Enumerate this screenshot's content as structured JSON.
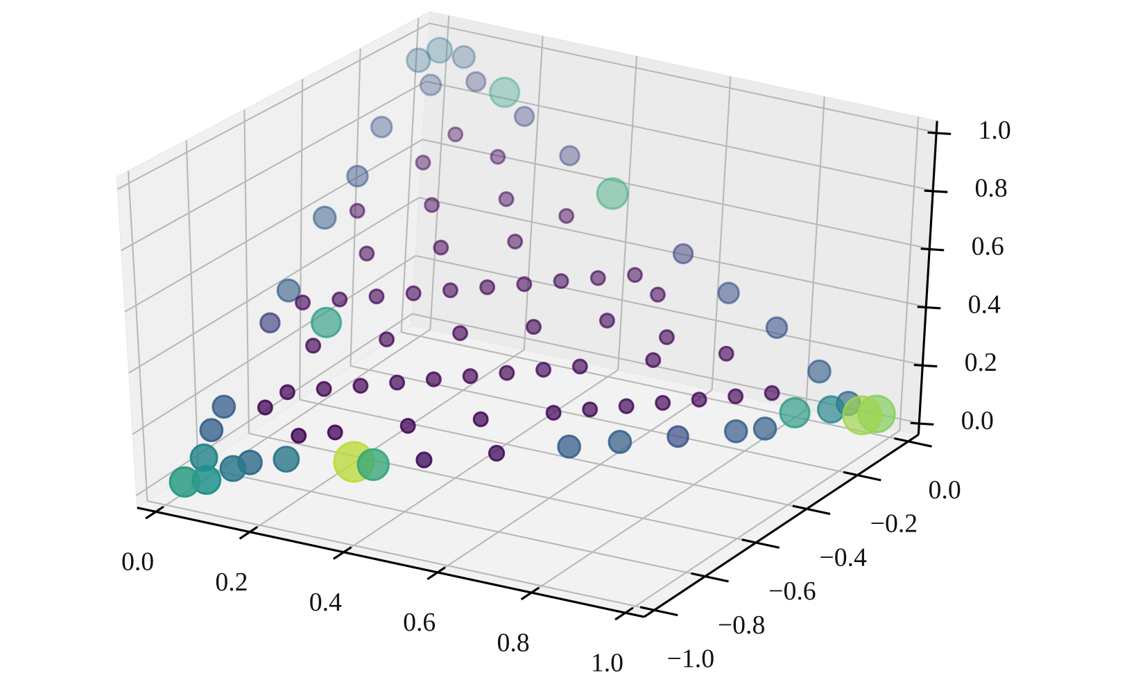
{
  "chart_data": {
    "type": "scatter3d",
    "colormap": "viridis",
    "grid": true,
    "depthshade": true,
    "x": [
      0.02,
      0.05,
      0.03,
      0.08,
      0.1,
      0.02,
      0.15,
      0.95,
      0.97,
      0.9,
      0.92,
      0.85,
      0.02,
      0,
      0.06,
      0.04,
      0.1,
      0.25,
      0.28,
      0.35,
      0.45,
      0.55,
      0.62,
      0.7,
      0.78,
      0.82,
      0.1,
      0.02,
      0.02,
      0.01,
      0.02,
      0.01,
      0.02,
      0.4,
      0.2,
      0.3,
      0.55,
      0.65,
      0.75,
      0.85,
      0.15,
      0.2,
      0.3,
      0.4,
      0.5,
      0.1,
      0.2,
      0.3,
      0.1,
      0.2,
      0.1,
      0.2,
      0.3,
      0.4,
      0.5,
      0.6,
      0.7,
      0.1,
      0.2,
      0.3,
      0.4,
      0.5,
      0.6,
      0.7,
      0.8,
      0.15,
      0.25,
      0.35,
      0.45,
      0.15,
      0.25,
      0.05,
      0.05,
      0.12,
      0.55,
      0.6,
      0.35,
      0.08,
      0.15,
      0.25,
      0.45,
      0.65,
      0.75,
      0.4,
      0.3,
      0.2,
      0.1,
      0.15,
      0.35,
      0.55,
      0.5
    ],
    "y": [
      -0.96,
      -0.93,
      -0.9,
      -0.88,
      -0.85,
      -0.85,
      -0.8,
      -0.02,
      0,
      -0.05,
      -0.02,
      -0.1,
      -0.02,
      -0.06,
      0,
      -0.08,
      -0.02,
      -0.72,
      -0.7,
      -0.63,
      -0.53,
      -0.43,
      -0.36,
      -0.28,
      -0.2,
      -0.16,
      -0.55,
      -0.55,
      -0.8,
      -0.4,
      -0.3,
      -0.2,
      -0.62,
      -0.02,
      -0.01,
      -0.01,
      -0.01,
      -0.01,
      0,
      -0.01,
      0,
      -0.5,
      -0.4,
      -0.3,
      -0.2,
      -0.4,
      -0.3,
      -0.2,
      -0.2,
      -0.1,
      -0.6,
      -0.6,
      -0.5,
      -0.4,
      -0.3,
      -0.2,
      -0.1,
      -0.7,
      -0.7,
      -0.6,
      -0.5,
      -0.4,
      -0.3,
      -0.2,
      -0.1,
      -0.45,
      -0.35,
      -0.25,
      -0.15,
      -0.25,
      -0.15,
      -0.35,
      -0.55,
      -0.12,
      -0.1,
      -0.15,
      -0.1,
      -0.75,
      -0.65,
      -0.55,
      -0.35,
      -0.25,
      -0.15,
      -0.2,
      -0.3,
      -0.4,
      -0.5,
      -0.75,
      -0.45,
      -0.35,
      -0.1
    ],
    "z": [
      0.02,
      0.02,
      0.07,
      0.04,
      0.05,
      0.13,
      0.05,
      0.03,
      0.03,
      0.05,
      0.06,
      0.05,
      0.96,
      0.94,
      0.94,
      0.88,
      0.88,
      0.03,
      0.02,
      0.02,
      0.02,
      0.02,
      0.02,
      0.02,
      0.02,
      0.02,
      0.35,
      0.43,
      0.18,
      0.59,
      0.68,
      0.79,
      0.36,
      0.6,
      0.79,
      0.69,
      0.44,
      0.34,
      0.25,
      0.14,
      0.85,
      0.3,
      0.3,
      0.3,
      0.3,
      0.5,
      0.5,
      0.5,
      0.7,
      0.7,
      0.3,
      0.2,
      0.2,
      0.2,
      0.2,
      0.2,
      0.2,
      0.2,
      0.1,
      0.1,
      0.1,
      0.1,
      0.1,
      0.1,
      0.1,
      0.4,
      0.4,
      0.4,
      0.4,
      0.6,
      0.6,
      0.6,
      0.4,
      0.76,
      0.35,
      0.25,
      0.55,
      0.17,
      0.2,
      0.2,
      0.2,
      0.1,
      0.1,
      0.4,
      0.4,
      0.4,
      0.4,
      0.1,
      0.2,
      0.1,
      0.4
    ],
    "values": [
      0.55,
      0.5,
      0.45,
      0.4,
      0.35,
      0.3,
      0.4,
      0.85,
      0.8,
      0.45,
      0.35,
      0.55,
      0.4,
      0.35,
      0.3,
      0.25,
      0.2,
      0.9,
      0.6,
      0.05,
      0.05,
      0.3,
      0.3,
      0.25,
      0.3,
      0.3,
      0.55,
      0.3,
      0.3,
      0.3,
      0.25,
      0.25,
      0.2,
      0.6,
      0.2,
      0.2,
      0.2,
      0.25,
      0.25,
      0.3,
      0.55,
      0.02,
      0.02,
      0.02,
      0.02,
      0.02,
      0.02,
      0.02,
      0.02,
      0.02,
      0.02,
      0.02,
      0.02,
      0.02,
      0.02,
      0.02,
      0.02,
      0.02,
      0.02,
      0.02,
      0.02,
      0.02,
      0.02,
      0.02,
      0.02,
      0.02,
      0.02,
      0.02,
      0.02,
      0.02,
      0.02,
      0.02,
      0.02,
      0.02,
      0.02,
      0.02,
      0.02,
      0.02,
      0.02,
      0.02,
      0.02,
      0.02,
      0.02,
      0.02,
      0.02,
      0.02,
      0.02,
      0.02,
      0.02,
      0.02,
      0.02
    ],
    "xlim": [
      0,
      1
    ],
    "ylim": [
      -1,
      0
    ],
    "zlim": [
      0,
      1
    ],
    "xticks": [
      {
        "value": 0,
        "label": "0.0"
      },
      {
        "value": 0.2,
        "label": "0.2"
      },
      {
        "value": 0.4,
        "label": "0.4"
      },
      {
        "value": 0.6,
        "label": "0.6"
      },
      {
        "value": 0.8,
        "label": "0.8"
      },
      {
        "value": 1,
        "label": "1.0"
      }
    ],
    "yticks": [
      {
        "value": -1,
        "label": "−1.0"
      },
      {
        "value": -0.8,
        "label": "−0.8"
      },
      {
        "value": -0.6,
        "label": "−0.6"
      },
      {
        "value": -0.4,
        "label": "−0.4"
      },
      {
        "value": -0.2,
        "label": "−0.2"
      },
      {
        "value": 0,
        "label": "0.0"
      }
    ],
    "zticks": [
      {
        "value": 0,
        "label": "0.0"
      },
      {
        "value": 0.2,
        "label": "0.2"
      },
      {
        "value": 0.4,
        "label": "0.4"
      },
      {
        "value": 0.6,
        "label": "0.6"
      },
      {
        "value": 0.8,
        "label": "0.8"
      },
      {
        "value": 1,
        "label": "1.0"
      }
    ]
  }
}
